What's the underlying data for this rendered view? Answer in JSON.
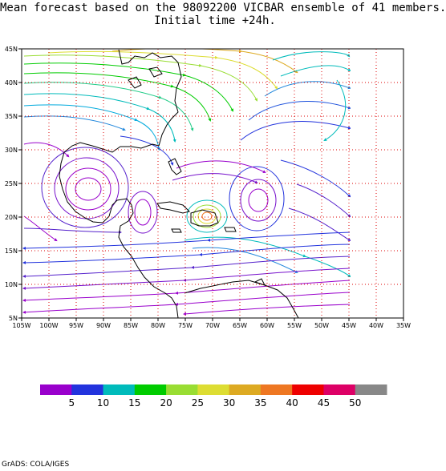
{
  "title": {
    "line1": "Mean forecast based on the 98092200 VICBAR ensemble of 41 members.",
    "line2": "Initial time +24h."
  },
  "map": {
    "lon_range": [
      -105,
      -35
    ],
    "lat_range": [
      5,
      45
    ],
    "data_lon_max": -45,
    "lon_ticks": [
      "105W",
      "100W",
      "95W",
      "90W",
      "85W",
      "80W",
      "75W",
      "70W",
      "65W",
      "60W",
      "55W",
      "50W",
      "45W",
      "40W",
      "35W"
    ],
    "lat_ticks": [
      "5N",
      "10N",
      "15N",
      "20N",
      "25N",
      "30N",
      "35N",
      "40N",
      "45N"
    ]
  },
  "colorbar": {
    "colors": [
      "#9900cc",
      "#2233dd",
      "#00bbbb",
      "#00cc00",
      "#99dd33",
      "#dddd33",
      "#ddaa22",
      "#ee7722",
      "#ee0000",
      "#dd0066",
      "#888888"
    ],
    "labels": [
      "5",
      "10",
      "15",
      "20",
      "25",
      "30",
      "35",
      "40",
      "45",
      "50"
    ]
  },
  "footer": "GrADS: COLA/IGES"
}
